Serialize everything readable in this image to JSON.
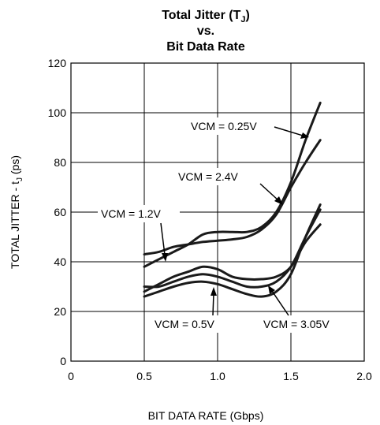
{
  "chart_data": {
    "type": "line",
    "title_lines": [
      "Total Jitter (T",
      "vs.",
      "Bit Data Rate"
    ],
    "title_sub": "J",
    "title_close": ")",
    "ylabel_main": "TOTAL JITTER - t",
    "ylabel_sub": "J",
    "ylabel_unit": " (ps)",
    "xlabel": "BIT DATA RATE (Gbps)",
    "xlim": [
      0,
      2.0
    ],
    "ylim": [
      0,
      120
    ],
    "xticks": [
      "0",
      "0.5",
      "1.0",
      "1.5",
      "2.0"
    ],
    "xtick_values": [
      0,
      0.5,
      1.0,
      1.5,
      2.0
    ],
    "yticks": [
      "0",
      "20",
      "40",
      "60",
      "80",
      "100",
      "120"
    ],
    "ytick_values": [
      0,
      20,
      40,
      60,
      80,
      100,
      120
    ],
    "grid": true,
    "series": [
      {
        "name": "VCM = 0.25V",
        "x": [
          0.5,
          0.6,
          0.7,
          0.8,
          0.9,
          1.0,
          1.1,
          1.2,
          1.3,
          1.4,
          1.5,
          1.6,
          1.7
        ],
        "y": [
          38,
          41,
          44,
          47,
          51,
          52,
          52,
          52,
          54,
          60,
          72,
          89,
          104
        ]
      },
      {
        "name": "VCM = 2.4V",
        "x": [
          0.5,
          0.6,
          0.7,
          0.8,
          0.9,
          1.0,
          1.1,
          1.2,
          1.3,
          1.4,
          1.5,
          1.6,
          1.7
        ],
        "y": [
          43,
          44,
          46,
          47,
          48,
          48.5,
          49,
          50,
          53,
          59,
          70,
          80,
          89
        ]
      },
      {
        "name": "VCM = 1.2V",
        "x": [
          0.5,
          0.6,
          0.7,
          0.8,
          0.9,
          1.0,
          1.1,
          1.2,
          1.3,
          1.4,
          1.5,
          1.6,
          1.7
        ],
        "y": [
          28,
          31,
          34,
          36,
          38,
          37,
          34,
          33,
          33,
          34,
          38,
          48,
          55
        ]
      },
      {
        "name": "VCM = 0.5V",
        "x": [
          0.5,
          0.6,
          0.7,
          0.8,
          0.9,
          1.0,
          1.1,
          1.2,
          1.3,
          1.4,
          1.5,
          1.6,
          1.7
        ],
        "y": [
          26,
          28,
          30,
          31.5,
          32,
          31,
          29,
          27,
          26,
          28,
          35,
          50,
          63
        ]
      },
      {
        "name": "VCM = 3.05V",
        "x": [
          0.5,
          0.6,
          0.7,
          0.8,
          0.9,
          1.0,
          1.1,
          1.2,
          1.3,
          1.4,
          1.5,
          1.6,
          1.7
        ],
        "y": [
          30,
          30,
          32,
          34,
          35,
          34,
          32,
          30,
          30,
          32,
          38,
          50,
          61
        ]
      }
    ],
    "annotations": [
      {
        "text": "VCM = 0.25V"
      },
      {
        "text": "VCM = 2.4V"
      },
      {
        "text": "VCM = 1.2V"
      },
      {
        "text": "VCM = 0.5V"
      },
      {
        "text": "VCM = 3.05V"
      }
    ]
  }
}
